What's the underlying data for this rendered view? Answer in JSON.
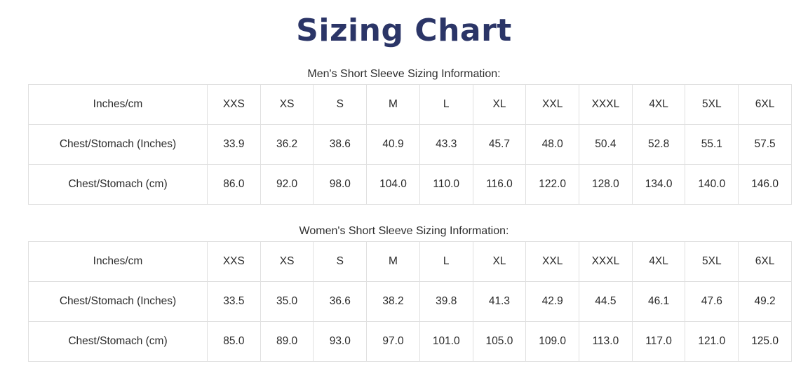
{
  "page": {
    "title": "Sizing Chart",
    "title_color": "#2b3567",
    "text_color": "#2b2b2b",
    "table_border_color": "#e0e0e0",
    "background_color": "#ffffff"
  },
  "tables": [
    {
      "caption": "Men's Short Sleeve Sizing Information:",
      "header": [
        "Inches/cm",
        "XXS",
        "XS",
        "S",
        "M",
        "L",
        "XL",
        "XXL",
        "XXXL",
        "4XL",
        "5XL",
        "6XL"
      ],
      "rows": [
        [
          "Chest/Stomach (Inches)",
          "33.9",
          "36.2",
          "38.6",
          "40.9",
          "43.3",
          "45.7",
          "48.0",
          "50.4",
          "52.8",
          "55.1",
          "57.5"
        ],
        [
          "Chest/Stomach (cm)",
          "86.0",
          "92.0",
          "98.0",
          "104.0",
          "110.0",
          "116.0",
          "122.0",
          "128.0",
          "134.0",
          "140.0",
          "146.0"
        ]
      ]
    },
    {
      "caption": "Women's Short Sleeve Sizing Information:",
      "header": [
        "Inches/cm",
        "XXS",
        "XS",
        "S",
        "M",
        "L",
        "XL",
        "XXL",
        "XXXL",
        "4XL",
        "5XL",
        "6XL"
      ],
      "rows": [
        [
          "Chest/Stomach (Inches)",
          "33.5",
          "35.0",
          "36.6",
          "38.2",
          "39.8",
          "41.3",
          "42.9",
          "44.5",
          "46.1",
          "47.6",
          "49.2"
        ],
        [
          "Chest/Stomach (cm)",
          "85.0",
          "89.0",
          "93.0",
          "97.0",
          "101.0",
          "105.0",
          "109.0",
          "113.0",
          "117.0",
          "121.0",
          "125.0"
        ]
      ]
    }
  ],
  "chart_data": {
    "type": "table",
    "title": "Sizing Chart",
    "tables": [
      {
        "name": "Men's Short Sleeve Sizing Information",
        "sizes": [
          "XXS",
          "XS",
          "S",
          "M",
          "L",
          "XL",
          "XXL",
          "XXXL",
          "4XL",
          "5XL",
          "6XL"
        ],
        "chest_stomach_inches": [
          33.9,
          36.2,
          38.6,
          40.9,
          43.3,
          45.7,
          48.0,
          50.4,
          52.8,
          55.1,
          57.5
        ],
        "chest_stomach_cm": [
          86.0,
          92.0,
          98.0,
          104.0,
          110.0,
          116.0,
          122.0,
          128.0,
          134.0,
          140.0,
          146.0
        ]
      },
      {
        "name": "Women's Short Sleeve Sizing Information",
        "sizes": [
          "XXS",
          "XS",
          "S",
          "M",
          "L",
          "XL",
          "XXL",
          "XXXL",
          "4XL",
          "5XL",
          "6XL"
        ],
        "chest_stomach_inches": [
          33.5,
          35.0,
          36.6,
          38.2,
          39.8,
          41.3,
          42.9,
          44.5,
          46.1,
          47.6,
          49.2
        ],
        "chest_stomach_cm": [
          85.0,
          89.0,
          93.0,
          97.0,
          101.0,
          105.0,
          109.0,
          113.0,
          117.0,
          121.0,
          125.0
        ]
      }
    ]
  }
}
